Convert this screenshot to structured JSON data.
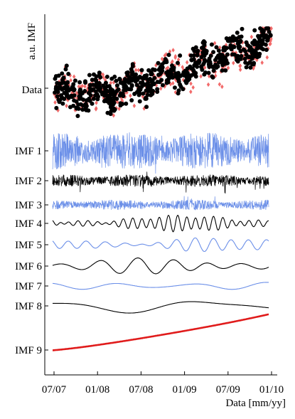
{
  "chart_data": {
    "type": "line",
    "title": "",
    "ylabel": "a.u. IMF",
    "xlabel": "Data [mm/yy]",
    "x_ticks": [
      "07/07",
      "01/08",
      "07/08",
      "01/09",
      "07/09",
      "01/10"
    ],
    "x_range": [
      "2007-07",
      "2010-01"
    ],
    "grid": false,
    "legend": "none",
    "data_track": {
      "label": "Data",
      "series": [
        {
          "marker": "diamond",
          "color": "#f26b6b",
          "trend_start": 0.35,
          "trend_end": 0.85,
          "scatter": 0.16
        },
        {
          "marker": "circle",
          "color": "#000000",
          "trend_start": 0.35,
          "trend_end": 0.9,
          "scatter": 0.14
        }
      ]
    },
    "imfs": [
      {
        "label": "IMF 1",
        "color": "#6b8fe8",
        "amplitude": 1.0,
        "cycles": 120,
        "type": "noise"
      },
      {
        "label": "IMF 2",
        "color": "#000000",
        "amplitude": 0.55,
        "cycles": 75,
        "type": "noise"
      },
      {
        "label": "IMF 3",
        "color": "#6b8fe8",
        "amplitude": 0.45,
        "cycles": 45,
        "type": "noise"
      },
      {
        "label": "IMF 4",
        "color": "#000000",
        "amplitude": 0.4,
        "cycles": 24,
        "type": "osc"
      },
      {
        "label": "IMF 5",
        "color": "#6b8fe8",
        "amplitude": 0.35,
        "cycles": 12,
        "type": "osc"
      },
      {
        "label": "IMF 6",
        "color": "#000000",
        "amplitude": 0.4,
        "cycles": 6,
        "type": "osc"
      },
      {
        "label": "IMF 7",
        "color": "#6b8fe8",
        "amplitude": 0.2,
        "cycles": 3,
        "type": "osc"
      },
      {
        "label": "IMF 8",
        "color": "#000000",
        "amplitude": 0.3,
        "cycles": 1.5,
        "type": "osc"
      },
      {
        "label": "IMF 9",
        "color": "#e01b1b",
        "amplitude": 1.0,
        "cycles": 0,
        "type": "trend"
      }
    ]
  }
}
